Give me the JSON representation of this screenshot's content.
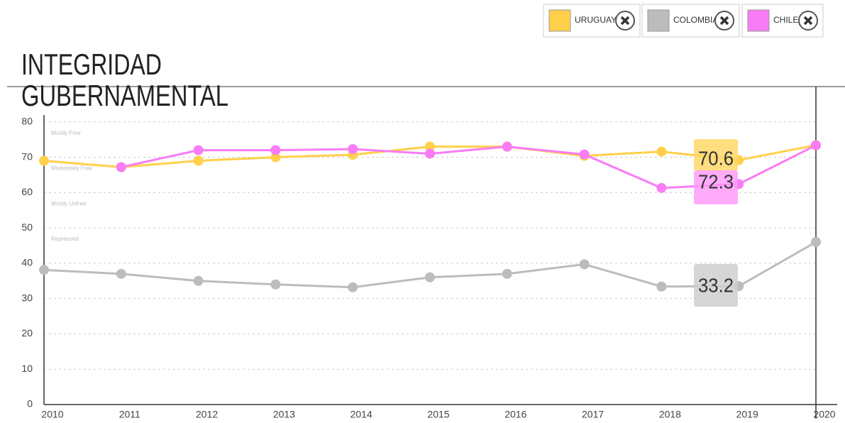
{
  "chart_data": {
    "type": "line",
    "title": [
      "INTEGRIDAD",
      "GUBERNAMENTAL"
    ],
    "categories": [
      "2010",
      "2011",
      "2012",
      "2013",
      "2014",
      "2015",
      "2016",
      "2017",
      "2018",
      "2019",
      "2020"
    ],
    "series": [
      {
        "name": "URUGUAY",
        "color": "#ffd04a",
        "values": [
          69,
          67.2,
          69,
          70,
          70.7,
          73,
          73,
          70.4,
          71.6,
          69.2,
          73.4
        ]
      },
      {
        "name": "COLOMBIA",
        "color": "#bcbcbc",
        "values": [
          38.1,
          37,
          35,
          34,
          33.2,
          36,
          37,
          39.7,
          33.4,
          33.5,
          46
        ]
      },
      {
        "name": "CHILE",
        "color": "#f87cf6",
        "values": [
          null,
          67.2,
          72,
          72,
          72.3,
          71,
          73,
          70.8,
          61.3,
          62.4,
          73.4
        ]
      }
    ],
    "ylim": [
      0,
      90
    ],
    "yticks": [
      0,
      10,
      20,
      30,
      40,
      50,
      60,
      70,
      80
    ],
    "grid": true,
    "bands": [
      {
        "label": "Mostly Free",
        "value": 80
      },
      {
        "label": "Moderately Free",
        "value": 70
      },
      {
        "label": "Mostly Unfree",
        "value": 60
      },
      {
        "label": "Repressed",
        "value": 50
      }
    ],
    "annotations": [
      {
        "text": "70.6",
        "color": "#ffd86a"
      },
      {
        "text": "72.3",
        "color": "#ff9cf8"
      },
      {
        "text": "33.2",
        "color": "#cfcfcf"
      }
    ]
  }
}
